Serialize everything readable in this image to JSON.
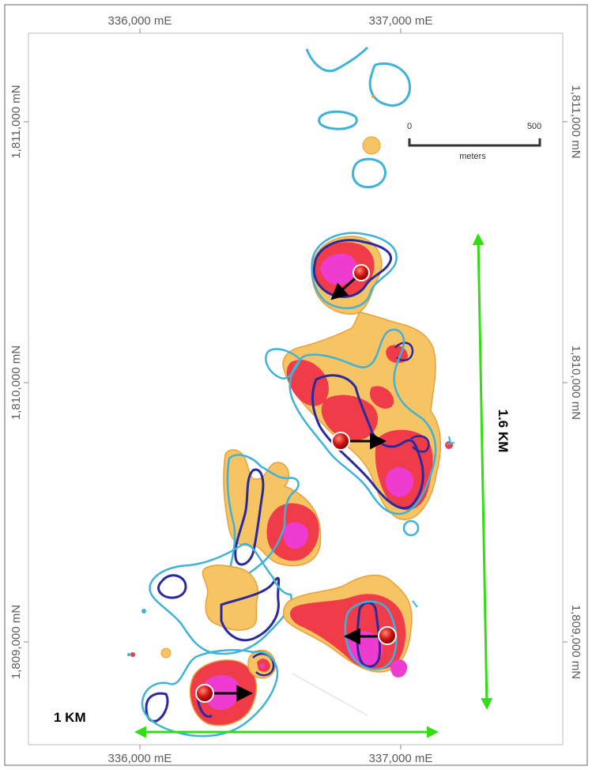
{
  "map": {
    "grid_labels": {
      "top_left": "336,000 mE",
      "top_right": "337,000 mE",
      "bottom_left": "336,000 mE",
      "bottom_right": "337,000 mE",
      "left_upper": "1,811,000 mN",
      "left_middle": "1,810,000 mN",
      "left_lower": "1,809,000 mN",
      "right_upper": "1,811,000 mN",
      "right_middle": "1,810,000 mN",
      "right_lower": "1,809,000 mN"
    },
    "scale_bar": {
      "start": "0",
      "end": "500",
      "unit": "meters"
    },
    "dimensions": {
      "width_label": "1 KM",
      "height_label": "1.6 KM"
    },
    "colors": {
      "contour_light_blue": "#3fb2d8",
      "contour_dark_blue": "#2a2a9e",
      "anomaly_low": "#f6c462",
      "anomaly_mid": "#f03c48",
      "anomaly_high": "#ee3cd0",
      "dimension_arrow": "#33dd11",
      "marker": "#c40f0f"
    }
  }
}
